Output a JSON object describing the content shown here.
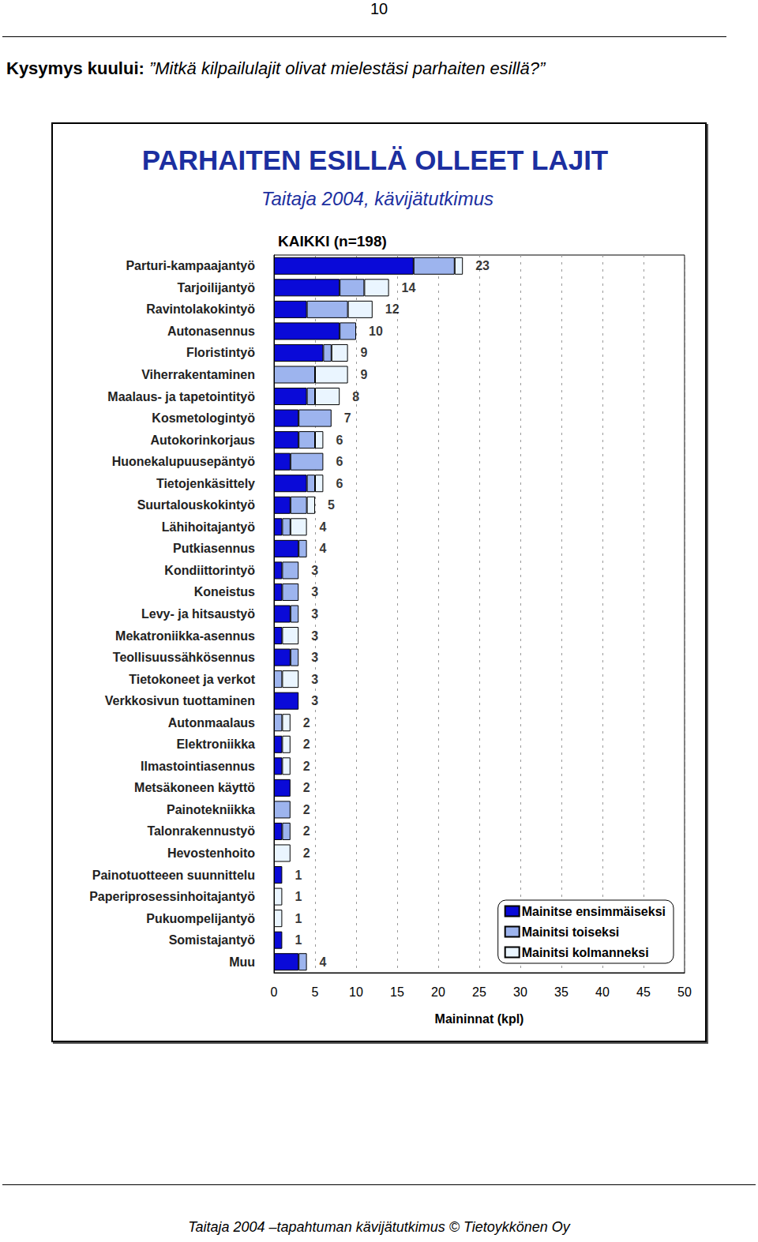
{
  "page": {
    "page_number": "10",
    "question_prefix": "Kysymys kuului:",
    "question": "”Mitkä kilpailulajit olivat mielestäsi parhaiten esillä?”",
    "footer": "Taitaja 2004 –tapahtuman kävijätutkimus © Tietoykkönen Oy"
  },
  "chart_data": {
    "type": "bar",
    "orientation": "horizontal",
    "stacked": true,
    "title": "PARHAITEN ESILLÄ OLLEET LAJIT",
    "subtitle": "Taitaja 2004, kävijätutkimus",
    "annotation": "KAIKKI (n=198)",
    "x_label": "Maininnat (kpl)",
    "categories": [
      "Parturi-kampaajantyö",
      "Tarjoilijantyö",
      "Ravintolakokintyö",
      "Autonasennus",
      "Floristintyö",
      "Viherrakentaminen",
      "Maalaus- ja tapetointityö",
      "Kosmetologintyö",
      "Autokorinkorjaus",
      "Huonekalupuusepäntyö",
      "Tietojenkäsittely",
      "Suurtalouskokintyö",
      "Lähihoitajantyö",
      "Putkiasennus",
      "Kondiittorintyö",
      "Koneistus",
      "Levy- ja hitsaustyö",
      "Mekatroniikka-asennus",
      "Teollisuussähkösennus",
      "Tietokoneet ja verkot",
      "Verkkosivun tuottaminen",
      "Autonmaalaus",
      "Elektroniikka",
      "Ilmastointiasennus",
      "Metsäkoneen käyttö",
      "Painotekniikka",
      "Talonrakennustyö",
      "Hevostenhoito",
      "Painotuotteeen suunnittelu",
      "Paperiprosessinhoitajantyö",
      "Pukuompelijantyö",
      "Somistajantyö",
      "Muu"
    ],
    "series": [
      {
        "name": "Mainitse ensimmäiseksi",
        "color": "#0a0ad8",
        "values": [
          17,
          8,
          4,
          8,
          6,
          0,
          4,
          3,
          3,
          2,
          4,
          2,
          1,
          3,
          1,
          1,
          2,
          1,
          2,
          0,
          3,
          0,
          1,
          1,
          2,
          0,
          1,
          0,
          1,
          0,
          0,
          1,
          3
        ]
      },
      {
        "name": "Mainitsi toiseksi",
        "color": "#9db4ee",
        "values": [
          5,
          3,
          5,
          2,
          1,
          5,
          1,
          4,
          2,
          4,
          1,
          2,
          1,
          1,
          2,
          2,
          1,
          0,
          1,
          1,
          0,
          1,
          0,
          0,
          0,
          2,
          1,
          0,
          0,
          0,
          0,
          0,
          1
        ]
      },
      {
        "name": "Mainitsi kolmanneksi",
        "color": "#eaf5ff",
        "values": [
          1,
          3,
          3,
          0,
          2,
          4,
          3,
          0,
          1,
          0,
          1,
          1,
          2,
          0,
          0,
          0,
          0,
          2,
          0,
          2,
          0,
          1,
          1,
          1,
          0,
          0,
          0,
          2,
          0,
          1,
          1,
          0,
          0
        ]
      }
    ],
    "totals": [
      23,
      14,
      12,
      10,
      9,
      9,
      8,
      7,
      6,
      6,
      6,
      5,
      4,
      4,
      3,
      3,
      3,
      3,
      3,
      3,
      3,
      2,
      2,
      2,
      2,
      2,
      2,
      2,
      1,
      1,
      1,
      1,
      4
    ],
    "xlim": [
      0,
      50
    ],
    "xticks": [
      0,
      5,
      10,
      15,
      20,
      25,
      30,
      35,
      40,
      45,
      50
    ],
    "grid": true,
    "legend": "bottom right"
  }
}
